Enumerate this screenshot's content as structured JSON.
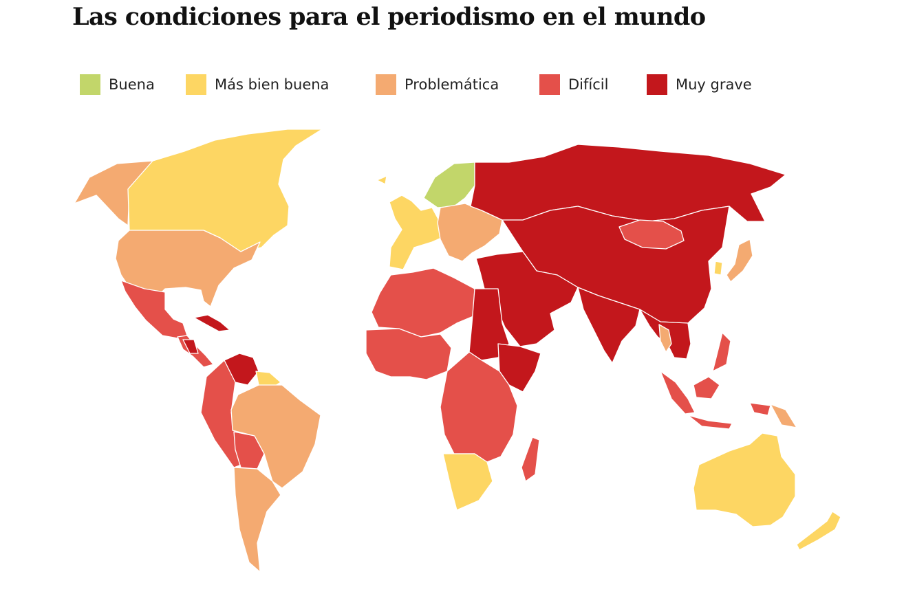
{
  "title": "Las condiciones para el periodismo en el mundo",
  "legend": [
    {
      "label": "Buena",
      "color": "#C2D66A"
    },
    {
      "label": "Más bien buena",
      "color": "#FDD663"
    },
    {
      "label": "Problemática",
      "color": "#F4AA71"
    },
    {
      "label": "Difícil",
      "color": "#E4504A"
    },
    {
      "label": "Muy grave",
      "color": "#C3171C"
    }
  ],
  "map": {
    "categories": {
      "buena": "#C2D66A",
      "mas_bien_buena": "#FDD663",
      "problematica": "#F4AA71",
      "dificil": "#E4504A",
      "muy_grave": "#C3171C"
    },
    "regions": {
      "alaska": "problematica",
      "canada": "mas_bien_buena",
      "usa": "problematica",
      "mexico": "dificil",
      "cuba": "muy_grave",
      "nicaragua": "muy_grave",
      "central_america": "dificil",
      "venezuela": "muy_grave",
      "colombia_peru": "dificil",
      "bolivia": "dificil",
      "brazil": "problematica",
      "southern_cone": "problematica",
      "guianas": "mas_bien_buena",
      "scandinavia": "buena",
      "western_europe": "mas_bien_buena",
      "eastern_europe": "problematica",
      "russia": "muy_grave",
      "central_asia_china": "muy_grave",
      "mongolia": "dificil",
      "middle_east": "muy_grave",
      "india": "muy_grave",
      "southeast_asia": "muy_grave",
      "thailand": "problematica",
      "indonesia": "dificil",
      "japan": "problematica",
      "korea": "mas_bien_buena",
      "north_africa": "dificil",
      "egypt_sudan": "muy_grave",
      "horn_of_africa": "muy_grave",
      "west_africa": "dificil",
      "central_africa": "dificil",
      "southern_africa": "mas_bien_buena",
      "madagascar": "dificil",
      "australia": "mas_bien_buena",
      "new_zealand": "mas_bien_buena",
      "papua": "problematica"
    }
  }
}
